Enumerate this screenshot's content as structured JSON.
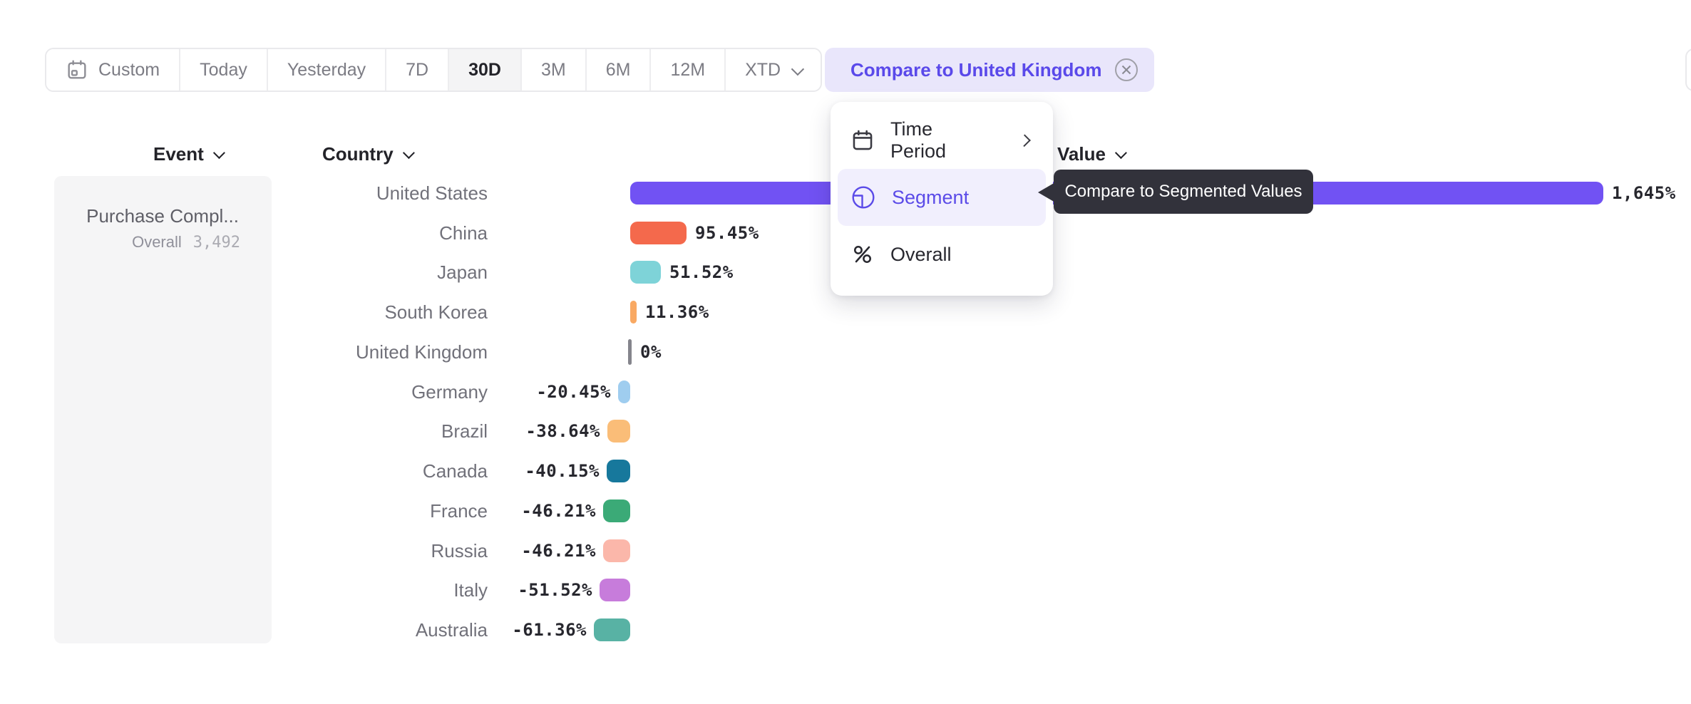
{
  "toolbar": {
    "date_ranges": [
      {
        "label": "Custom",
        "icon": "calendar",
        "selected": false
      },
      {
        "label": "Today",
        "selected": false
      },
      {
        "label": "Yesterday",
        "selected": false
      },
      {
        "label": "7D",
        "selected": false
      },
      {
        "label": "30D",
        "selected": true
      },
      {
        "label": "3M",
        "selected": false
      },
      {
        "label": "6M",
        "selected": false
      },
      {
        "label": "12M",
        "selected": false
      },
      {
        "label": "XTD",
        "selected": false,
        "has_dropdown": true
      }
    ],
    "compare_button": {
      "label": "Compare to United Kingdom",
      "icon": "x-circle"
    }
  },
  "columns": {
    "event": "Event",
    "country": "Country",
    "value": "Value"
  },
  "event_panel": {
    "event_name": "Purchase Compl...",
    "overall_label": "Overall",
    "overall_value": "3,492"
  },
  "menu": {
    "items": [
      {
        "label": "Time Period",
        "icon": "calendar-icon",
        "has_submenu": true,
        "selected": false
      },
      {
        "label": "Segment",
        "icon": "segment-icon",
        "selected": true
      },
      {
        "label": "Overall",
        "icon": "percent-icon",
        "selected": false
      }
    ]
  },
  "tooltip": {
    "text": "Compare to Segmented Values",
    "background": "#32323B"
  },
  "chart_data": {
    "type": "bar",
    "orientation": "horizontal",
    "title": "",
    "event": "Purchase Compl...",
    "overall_count": "3,492",
    "xlabel": "Value",
    "ylabel": "Country",
    "baseline_category": "United Kingdom",
    "categories": [
      "United States",
      "China",
      "Japan",
      "South Korea",
      "United Kingdom",
      "Germany",
      "Brazil",
      "Canada",
      "France",
      "Russia",
      "Italy",
      "Australia"
    ],
    "values": [
      1645,
      95.45,
      51.52,
      11.36,
      0,
      -20.45,
      -38.64,
      -40.15,
      -46.21,
      -46.21,
      -51.52,
      -61.36
    ],
    "value_labels": [
      "1,645%",
      "95.45%",
      "51.52%",
      "11.36%",
      "0%",
      "-20.45%",
      "-38.64%",
      "-40.15%",
      "-46.21%",
      "-46.21%",
      "-51.52%",
      "-61.36%"
    ],
    "colors": [
      "#7152F3",
      "#F4694C",
      "#7ED3D8",
      "#F9A963",
      "#85858C",
      "#9FCDEF",
      "#FABD78",
      "#17789C",
      "#3BAA77",
      "#FBB7AA",
      "#C77CDB",
      "#58B2A4"
    ],
    "patterns": [
      false,
      false,
      false,
      false,
      false,
      true,
      true,
      false,
      false,
      false,
      false,
      false
    ],
    "legend": [],
    "grid": false
  },
  "theme": {
    "accent_purple": "#5B4BE8",
    "bar_purple": "#7152F3",
    "compare_pill_bg": "#E9E6FB",
    "menu_highlight_bg": "#F1EFFD",
    "tooltip_bg": "#32323B",
    "panel_bg": "#F5F5F6",
    "selected_range_bg": "#F4F4F5",
    "muted_text": "#7C7C84"
  }
}
